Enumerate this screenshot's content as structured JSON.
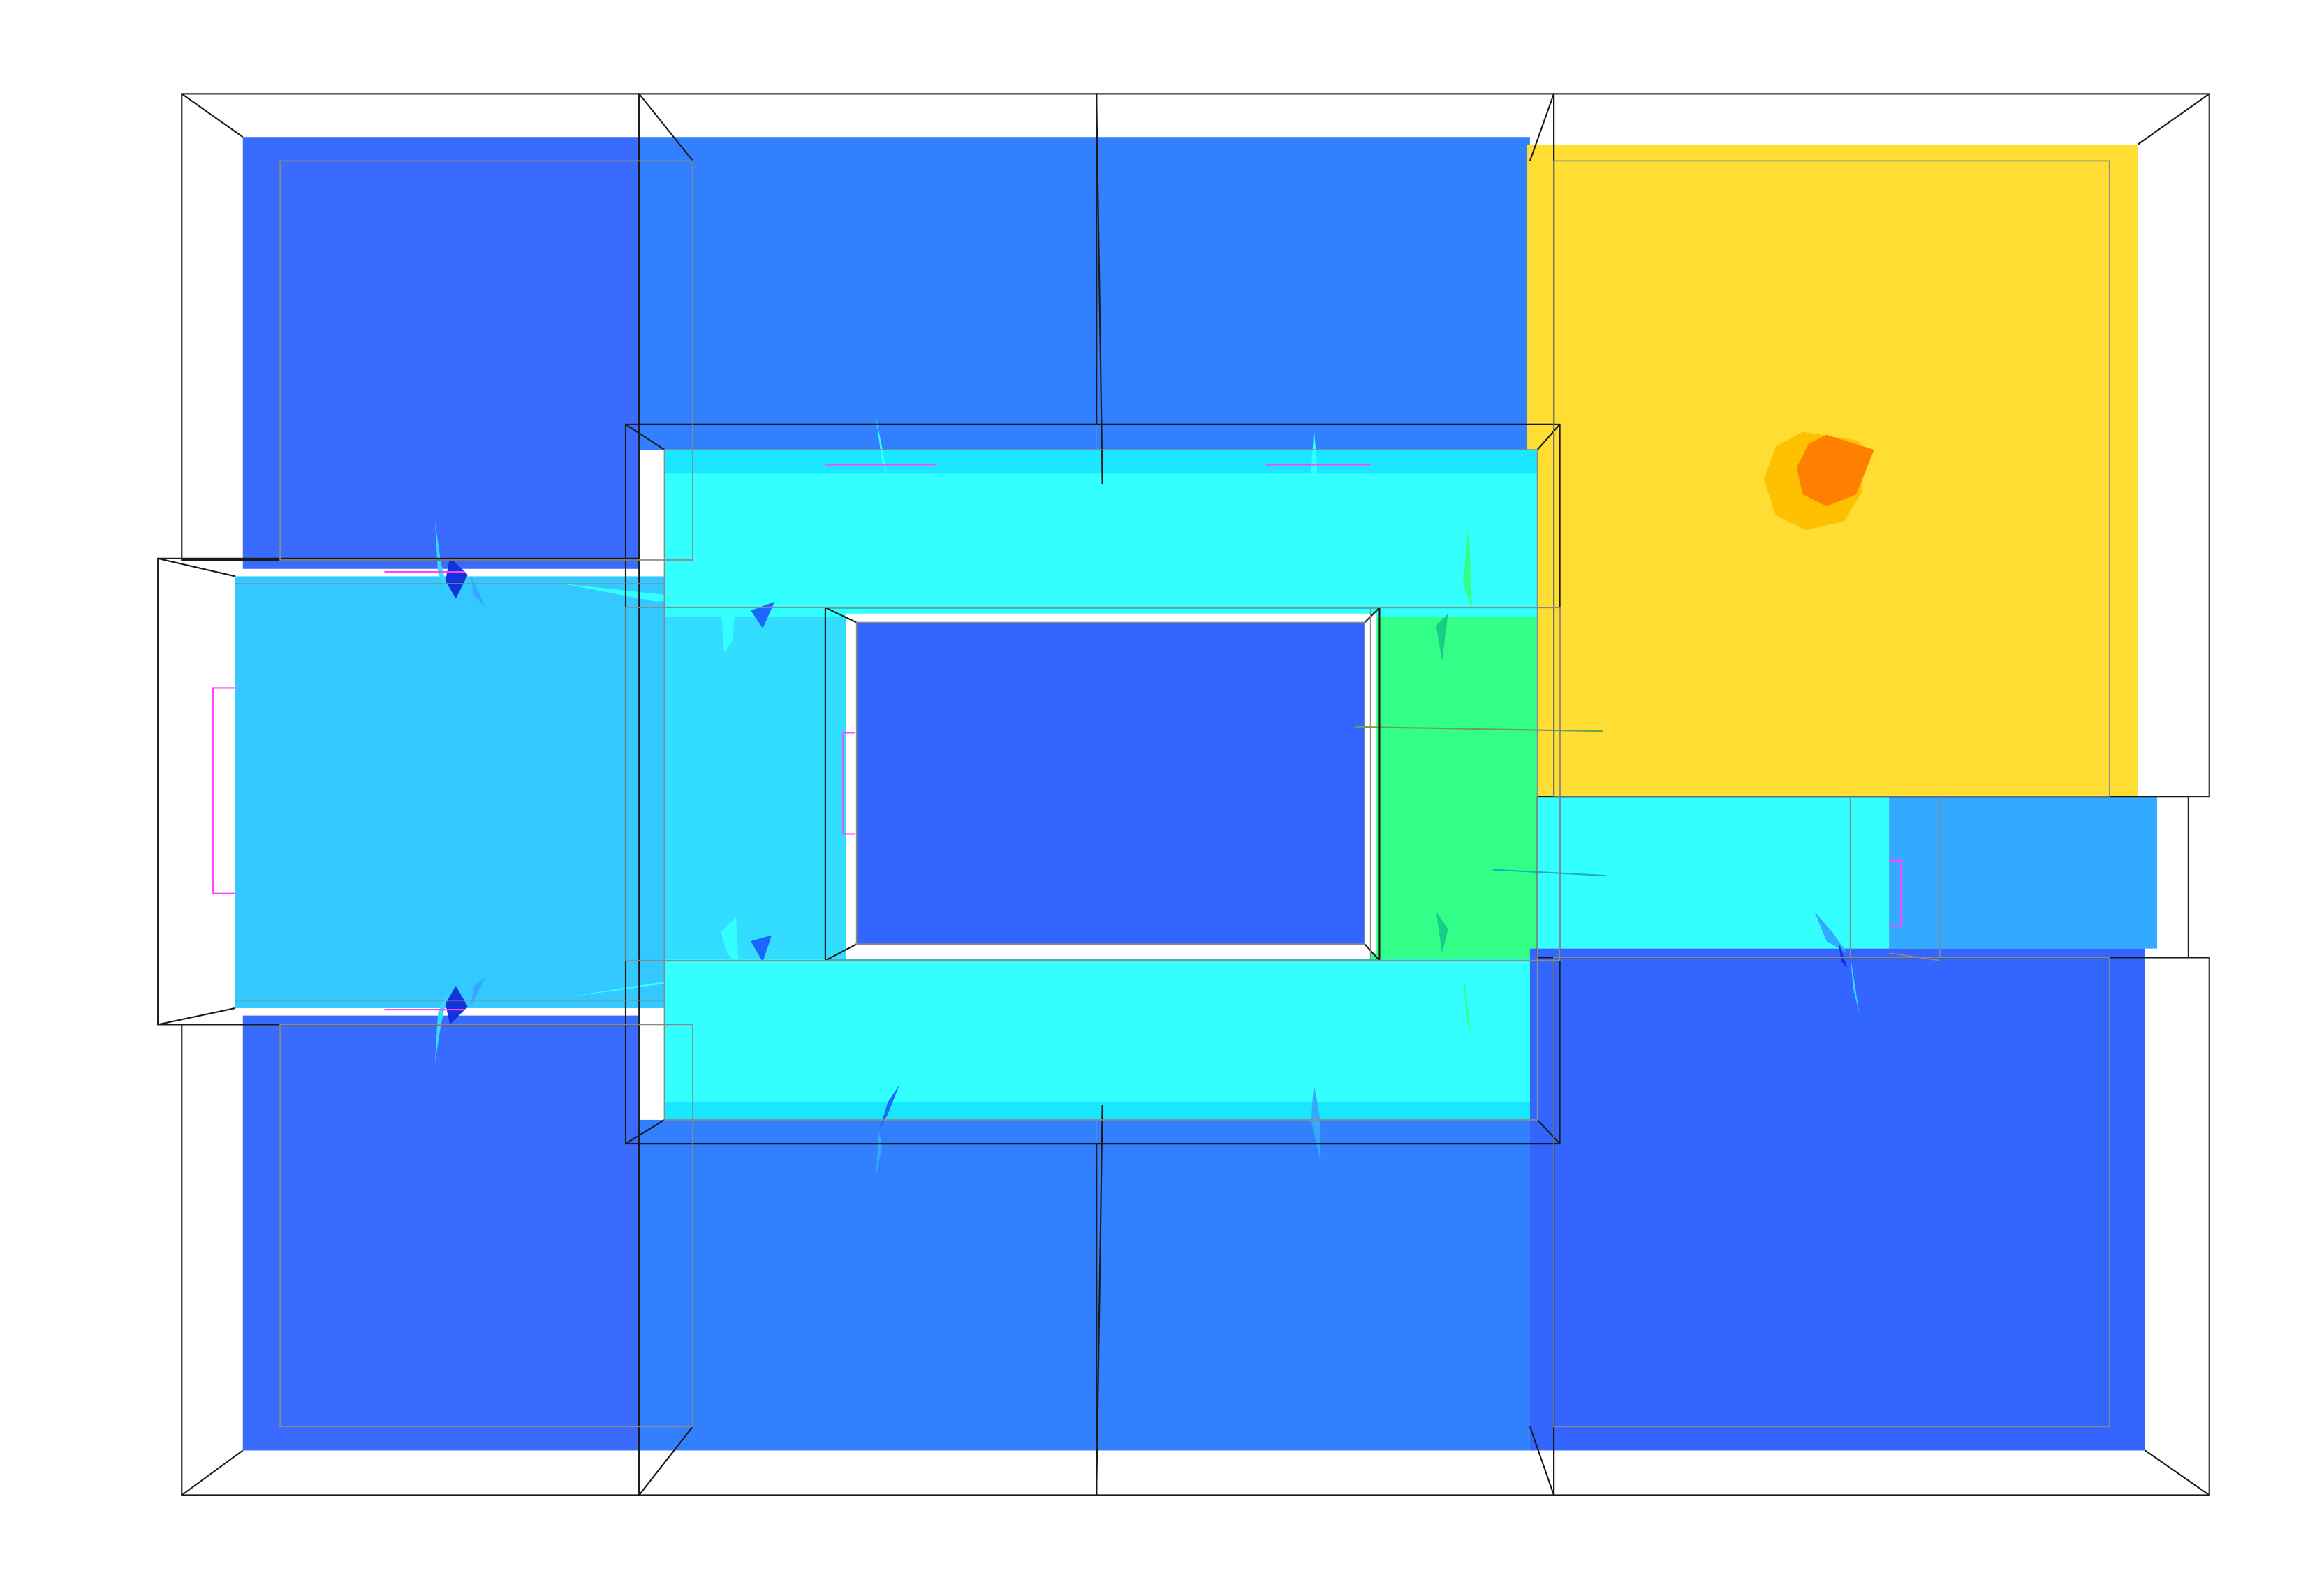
{
  "scene": {
    "description_visible_text": "",
    "palette": {
      "background": "#ffffff",
      "wireframe": "#1a1a1a",
      "wireframe_light": "#8a8a8a",
      "blue_deep": "#3366ff",
      "blue": "#3380ff",
      "blue_mid": "#33aaff",
      "sky": "#33c8ff",
      "sky_light": "#33ddff",
      "cyan": "#33ffff",
      "cyan_edge": "#19e6ff",
      "green": "#33ff88",
      "yellow": "#ffdd33",
      "yellow_dark": "#ffc000",
      "orange": "#ff8000",
      "magenta": "#ff44ff",
      "blue_dark": "#0033cc"
    },
    "rooms": [
      {
        "id": "room-top-left",
        "color": "blue_deep"
      },
      {
        "id": "room-top-middle-left",
        "color": "blue"
      },
      {
        "id": "room-top-middle-right",
        "color": "blue"
      },
      {
        "id": "room-top-right",
        "color": "yellow"
      },
      {
        "id": "room-left-hall",
        "color": "sky"
      },
      {
        "id": "corridor-ring-top",
        "color": "cyan"
      },
      {
        "id": "corridor-ring-bottom",
        "color": "cyan"
      },
      {
        "id": "corridor-ring-left",
        "color": "sky_light"
      },
      {
        "id": "corridor-ring-right",
        "color": "green"
      },
      {
        "id": "room-center-core",
        "color": "blue_deep"
      },
      {
        "id": "corridor-east",
        "color": "cyan"
      },
      {
        "id": "room-east-stub",
        "color": "blue_mid"
      },
      {
        "id": "room-bottom-left",
        "color": "blue_deep"
      },
      {
        "id": "room-bottom-middle-left",
        "color": "blue"
      },
      {
        "id": "room-bottom-middle-right",
        "color": "blue"
      },
      {
        "id": "room-bottom-right",
        "color": "blue_deep"
      }
    ],
    "hotspot": {
      "id": "fire-source",
      "outer_color": "yellow_dark",
      "inner_color": "orange"
    }
  }
}
